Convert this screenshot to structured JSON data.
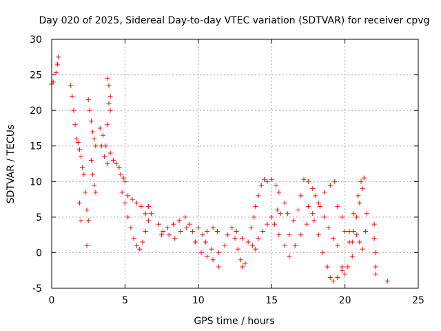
{
  "chart_data": {
    "type": "scatter",
    "title": "Day 020 of 2025, Sidereal Day-to-day VTEC variation (SDTVAR) for receiver cpvg",
    "xlabel": "GPS time / hours",
    "ylabel": "SDTVAR / TECUs",
    "xlim": [
      0,
      25
    ],
    "ylim": [
      -5,
      30
    ],
    "xticks": [
      "0",
      "5",
      "10",
      "15",
      "20",
      "25"
    ],
    "yticks": [
      "-5",
      "0",
      "5",
      "10",
      "15",
      "20",
      "25",
      "30"
    ],
    "grid": true,
    "marker": "+",
    "color": "#ff0000",
    "series": [
      {
        "name": "cpvg",
        "points": [
          [
            0.0,
            23.7
          ],
          [
            0.1,
            24.0
          ],
          [
            0.3,
            25.3
          ],
          [
            0.4,
            26.5
          ],
          [
            0.45,
            27.5
          ],
          [
            1.3,
            23.5
          ],
          [
            1.4,
            22.0
          ],
          [
            1.5,
            20.0
          ],
          [
            1.6,
            18.0
          ],
          [
            1.7,
            16.0
          ],
          [
            1.8,
            15.5
          ],
          [
            1.9,
            14.5
          ],
          [
            2.0,
            13.5
          ],
          [
            2.1,
            12.0
          ],
          [
            2.2,
            11.0
          ],
          [
            2.3,
            8.5
          ],
          [
            2.4,
            6.0
          ],
          [
            2.5,
            4.5
          ],
          [
            2.4,
            1.0
          ],
          [
            1.9,
            7.0
          ],
          [
            2.0,
            4.5
          ],
          [
            2.5,
            21.5
          ],
          [
            2.6,
            20.0
          ],
          [
            2.7,
            18.5
          ],
          [
            2.8,
            17.0
          ],
          [
            2.9,
            16.0
          ],
          [
            3.0,
            15.0
          ],
          [
            2.7,
            13.0
          ],
          [
            2.8,
            11.0
          ],
          [
            2.9,
            9.5
          ],
          [
            3.0,
            8.5
          ],
          [
            3.3,
            17.5
          ],
          [
            3.5,
            16.5
          ],
          [
            3.7,
            15.0
          ],
          [
            3.8,
            18.0
          ],
          [
            3.9,
            21.0
          ],
          [
            3.8,
            24.5
          ],
          [
            3.9,
            23.5
          ],
          [
            4.0,
            22.0
          ],
          [
            4.0,
            20.0
          ],
          [
            3.4,
            15.0
          ],
          [
            3.6,
            13.5
          ],
          [
            3.8,
            12.5
          ],
          [
            4.0,
            14.0
          ],
          [
            4.2,
            13.0
          ],
          [
            4.4,
            12.5
          ],
          [
            4.6,
            12.0
          ],
          [
            4.7,
            11.0
          ],
          [
            4.9,
            10.5
          ],
          [
            5.0,
            10.0
          ],
          [
            4.8,
            8.5
          ],
          [
            5.0,
            7.0
          ],
          [
            5.2,
            5.0
          ],
          [
            5.4,
            3.5
          ],
          [
            5.6,
            2.0
          ],
          [
            5.8,
            1.0
          ],
          [
            6.0,
            0.5
          ],
          [
            6.2,
            1.5
          ],
          [
            6.4,
            3.0
          ],
          [
            6.6,
            4.5
          ],
          [
            6.8,
            5.5
          ],
          [
            6.6,
            6.5
          ],
          [
            5.2,
            8.0
          ],
          [
            5.5,
            7.5
          ],
          [
            5.8,
            7.0
          ],
          [
            6.1,
            6.5
          ],
          [
            6.4,
            5.5
          ],
          [
            7.3,
            4.0
          ],
          [
            7.6,
            3.0
          ],
          [
            8.0,
            2.5
          ],
          [
            8.4,
            2.0
          ],
          [
            8.8,
            3.0
          ],
          [
            9.2,
            3.5
          ],
          [
            9.6,
            3.0
          ],
          [
            10.0,
            3.5
          ],
          [
            10.3,
            2.5
          ],
          [
            10.6,
            3.0
          ],
          [
            11.0,
            3.5
          ],
          [
            11.3,
            3.0
          ],
          [
            7.5,
            2.5
          ],
          [
            7.9,
            3.5
          ],
          [
            8.3,
            4.0
          ],
          [
            8.7,
            4.5
          ],
          [
            9.1,
            5.0
          ],
          [
            9.4,
            4.0
          ],
          [
            9.8,
            1.5
          ],
          [
            10.2,
            0.0
          ],
          [
            10.6,
            -0.5
          ],
          [
            11.0,
            -1.0
          ],
          [
            11.4,
            -2.0
          ],
          [
            10.5,
            1.5
          ],
          [
            10.9,
            0.5
          ],
          [
            11.4,
            0.0
          ],
          [
            11.8,
            1.0
          ],
          [
            12.0,
            2.5
          ],
          [
            12.5,
            2.0
          ],
          [
            12.7,
            0.5
          ],
          [
            12.9,
            -1.0
          ],
          [
            13.0,
            -2.0
          ],
          [
            13.2,
            -1.5
          ],
          [
            12.3,
            3.5
          ],
          [
            12.6,
            3.0
          ],
          [
            13.0,
            2.0
          ],
          [
            13.4,
            1.5
          ],
          [
            13.7,
            1.0
          ],
          [
            13.6,
            3.5
          ],
          [
            13.8,
            5.0
          ],
          [
            13.9,
            6.5
          ],
          [
            14.1,
            8.0
          ],
          [
            14.3,
            9.5
          ],
          [
            14.5,
            10.3
          ],
          [
            13.9,
            0.5
          ],
          [
            14.1,
            2.0
          ],
          [
            14.4,
            3.0
          ],
          [
            14.7,
            4.0
          ],
          [
            15.0,
            5.0
          ],
          [
            14.7,
            10.0
          ],
          [
            15.0,
            10.3
          ],
          [
            15.3,
            9.5
          ],
          [
            15.5,
            8.5
          ],
          [
            15.2,
            4.0
          ],
          [
            15.4,
            6.0
          ],
          [
            15.6,
            5.5
          ],
          [
            15.9,
            7.0
          ],
          [
            16.1,
            5.5
          ],
          [
            15.5,
            2.5
          ],
          [
            15.9,
            1.0
          ],
          [
            16.2,
            2.5
          ],
          [
            16.5,
            4.5
          ],
          [
            16.8,
            6.0
          ],
          [
            17.0,
            8.0
          ],
          [
            17.2,
            10.3
          ],
          [
            17.5,
            10.0
          ],
          [
            17.8,
            9.0
          ],
          [
            18.0,
            8.0
          ],
          [
            18.3,
            6.5
          ],
          [
            18.6,
            5.0
          ],
          [
            18.9,
            3.5
          ],
          [
            19.2,
            2.0
          ],
          [
            19.5,
            1.0
          ],
          [
            16.2,
            -0.5
          ],
          [
            16.6,
            1.0
          ],
          [
            17.0,
            2.5
          ],
          [
            17.4,
            4.0
          ],
          [
            17.8,
            5.5
          ],
          [
            18.2,
            7.0
          ],
          [
            18.6,
            8.5
          ],
          [
            19.0,
            9.5
          ],
          [
            19.3,
            10.0
          ],
          [
            17.5,
            6.5
          ],
          [
            17.9,
            4.5
          ],
          [
            18.2,
            2.5
          ],
          [
            18.5,
            0.0
          ],
          [
            18.8,
            -2.0
          ],
          [
            19.0,
            -3.5
          ],
          [
            19.2,
            -4.0
          ],
          [
            19.5,
            -3.5
          ],
          [
            19.8,
            -2.0
          ],
          [
            19.5,
            6.5
          ],
          [
            19.8,
            5.0
          ],
          [
            20.0,
            3.0
          ],
          [
            20.3,
            1.5
          ],
          [
            20.5,
            -0.5
          ],
          [
            20.2,
            -2.0
          ],
          [
            20.0,
            -3.0
          ],
          [
            19.8,
            -2.5
          ],
          [
            20.3,
            3.0
          ],
          [
            20.6,
            5.5
          ],
          [
            20.9,
            8.0
          ],
          [
            21.1,
            10.0
          ],
          [
            21.3,
            10.5
          ],
          [
            21.2,
            9.0
          ],
          [
            21.0,
            7.0
          ],
          [
            20.8,
            5.0
          ],
          [
            20.6,
            3.0
          ],
          [
            20.5,
            1.5
          ],
          [
            20.8,
            2.5
          ],
          [
            21.0,
            1.5
          ],
          [
            21.2,
            0.5
          ],
          [
            21.4,
            3.0
          ],
          [
            21.5,
            5.5
          ],
          [
            22.0,
            4.0
          ],
          [
            22.0,
            2.0
          ],
          [
            22.1,
            0.0
          ],
          [
            22.1,
            -2.0
          ],
          [
            22.1,
            -3.0
          ],
          [
            22.9,
            -4.0
          ]
        ]
      }
    ]
  }
}
